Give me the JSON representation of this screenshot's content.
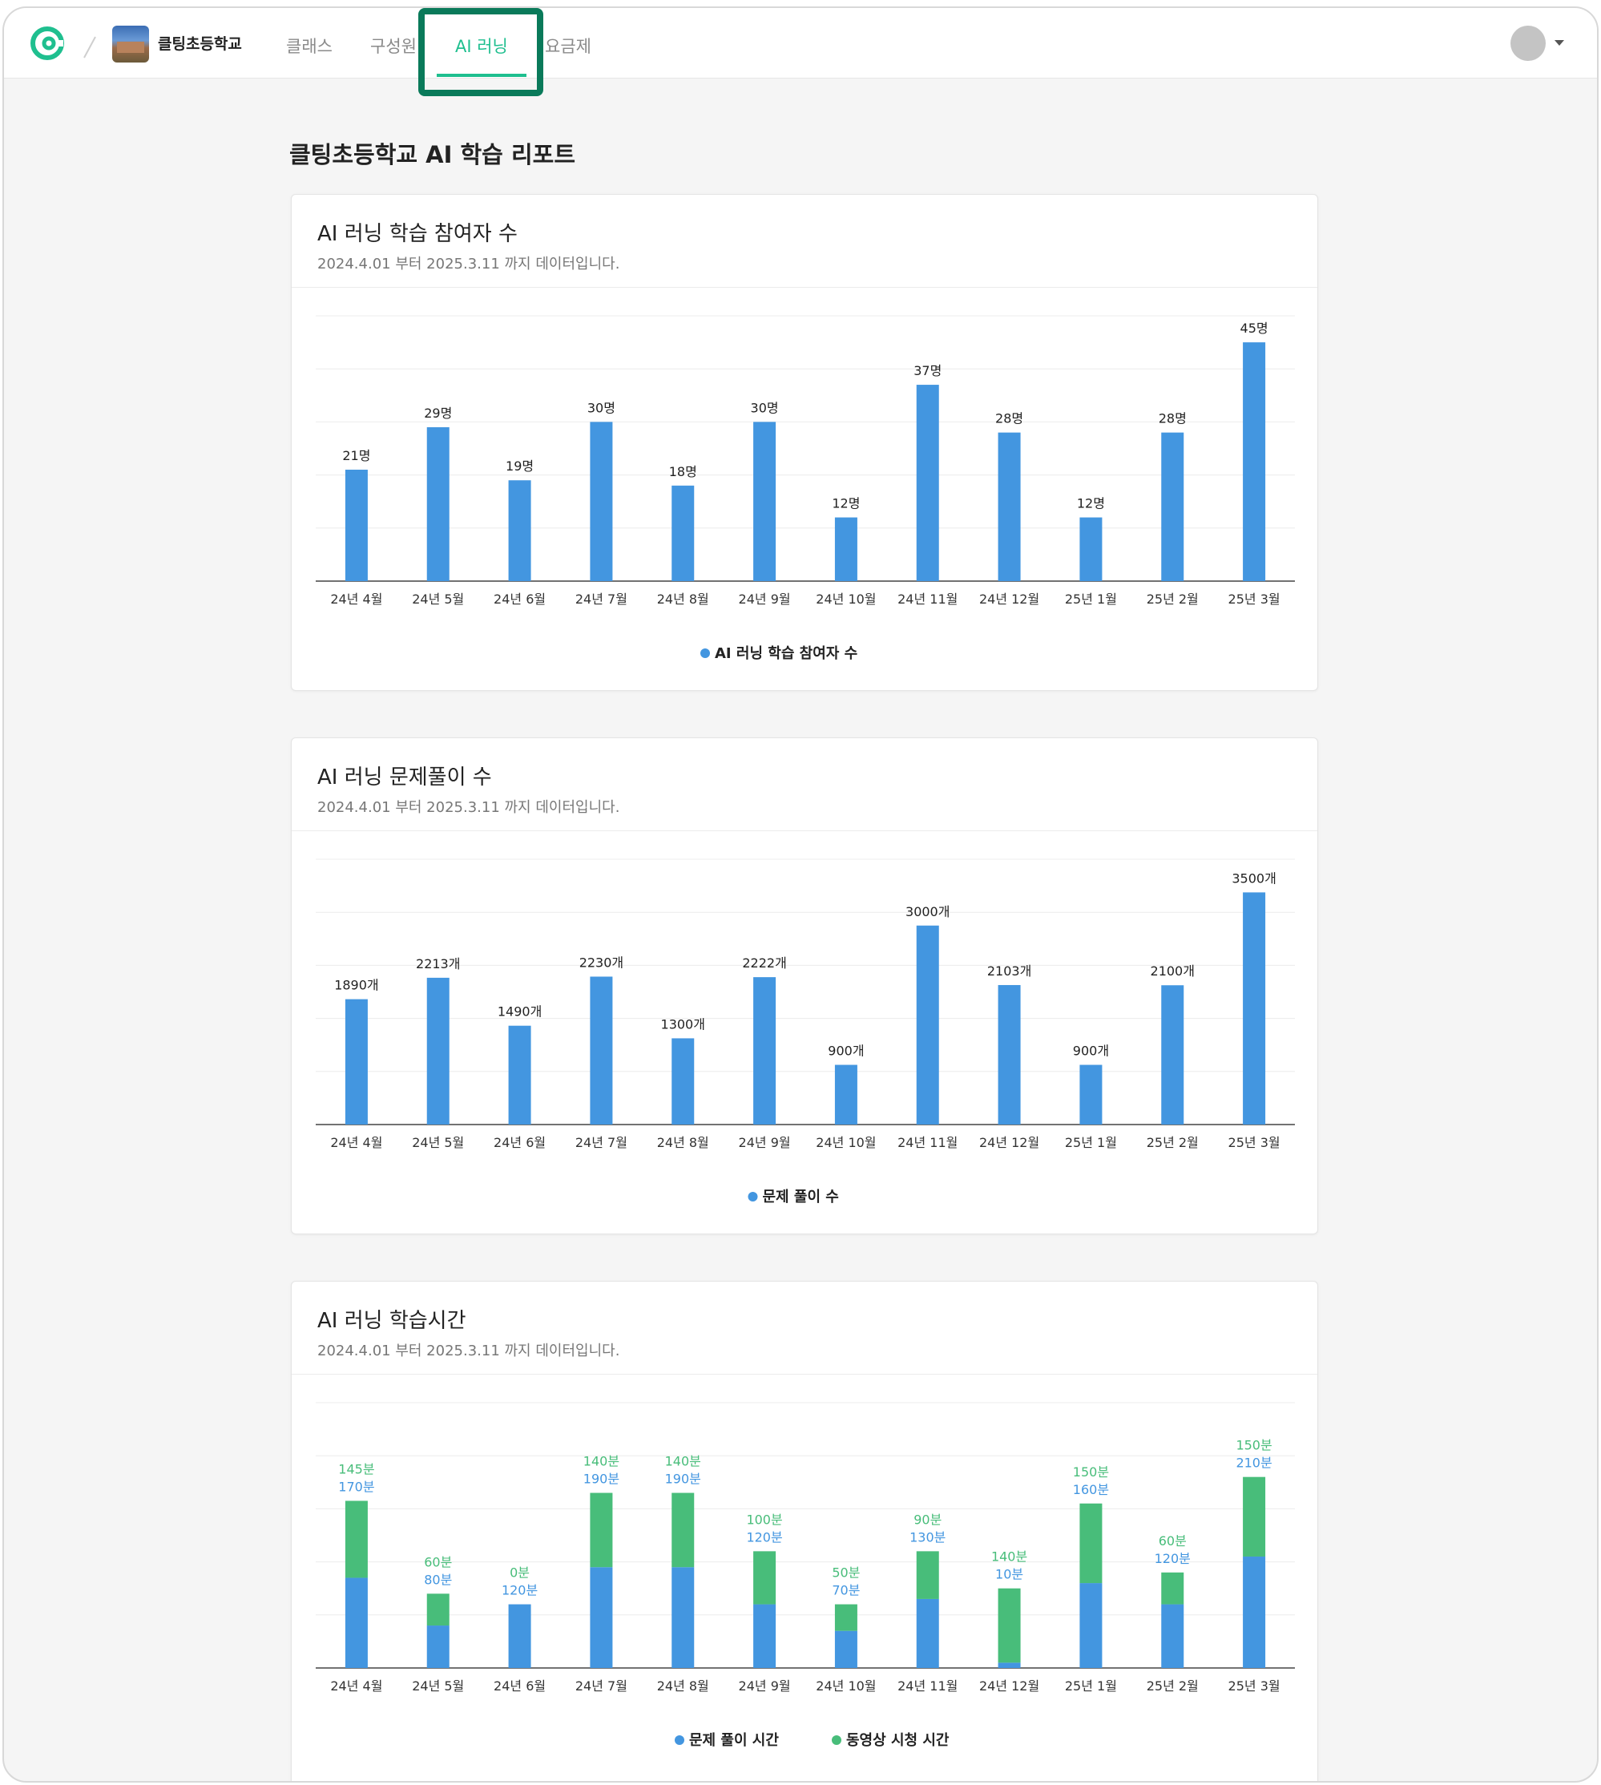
{
  "nav": {
    "school_name": "클팅초등학교",
    "tabs": [
      {
        "label": "클래스"
      },
      {
        "label": "구성원"
      },
      {
        "label": "AI 러닝"
      },
      {
        "label": "요금제"
      }
    ],
    "active_tab": "AI 러닝"
  },
  "page": {
    "title": "클팅초등학교 AI 학습 리포트"
  },
  "cards": [
    {
      "title": "AI 러닝 학습 참여자 수",
      "subtitle": "2024.4.01 부터 2025.3.11 까지 데이터입니다."
    },
    {
      "title": "AI 러닝 문제풀이 수",
      "subtitle": "2024.4.01 부터 2025.3.11 까지 데이터입니다."
    },
    {
      "title": "AI 러닝 학습시간",
      "subtitle": "2024.4.01 부터 2025.3.11 까지 데이터입니다."
    }
  ],
  "colors": {
    "accent": "#1fbf8f",
    "bar_blue": "#4396e0",
    "bar_green": "#48bd7a",
    "highlight": "#0a7a5a"
  },
  "chart_data": [
    {
      "type": "bar",
      "categories": [
        "24년 4월",
        "24년 5월",
        "24년 6월",
        "24년 7월",
        "24년 8월",
        "24년 9월",
        "24년 10월",
        "24년 11월",
        "24년 12월",
        "25년 1월",
        "25년 2월",
        "25년 3월"
      ],
      "series": [
        {
          "name": "AI 러닝 학습 참여자 수",
          "values": [
            21,
            29,
            19,
            30,
            18,
            30,
            12,
            37,
            28,
            12,
            28,
            45
          ]
        }
      ],
      "unit": "명",
      "ylim": [
        0,
        50
      ],
      "grid": true,
      "legend": "bottom"
    },
    {
      "type": "bar",
      "categories": [
        "24년 4월",
        "24년 5월",
        "24년 6월",
        "24년 7월",
        "24년 8월",
        "24년 9월",
        "24년 10월",
        "24년 11월",
        "24년 12월",
        "25년 1월",
        "25년 2월",
        "25년 3월"
      ],
      "series": [
        {
          "name": "문제 풀이 수",
          "values": [
            1890,
            2213,
            1490,
            2230,
            1300,
            2222,
            900,
            3000,
            2103,
            900,
            2100,
            3500
          ]
        }
      ],
      "unit": "개",
      "ylim": [
        0,
        4000
      ],
      "grid": true,
      "legend": "bottom"
    },
    {
      "type": "bar",
      "stacked": true,
      "categories": [
        "24년 4월",
        "24년 5월",
        "24년 6월",
        "24년 7월",
        "24년 8월",
        "24년 9월",
        "24년 10월",
        "24년 11월",
        "24년 12월",
        "25년 1월",
        "25년 2월",
        "25년 3월"
      ],
      "series": [
        {
          "name": "문제 풀이 시간",
          "values": [
            170,
            80,
            120,
            190,
            190,
            120,
            70,
            130,
            10,
            160,
            120,
            210
          ]
        },
        {
          "name": "동영상 시청 시간",
          "values": [
            145,
            60,
            0,
            140,
            140,
            100,
            50,
            90,
            140,
            150,
            60,
            150
          ]
        }
      ],
      "unit": "분",
      "ylim": [
        0,
        500
      ],
      "grid": true,
      "legend": "bottom"
    }
  ]
}
